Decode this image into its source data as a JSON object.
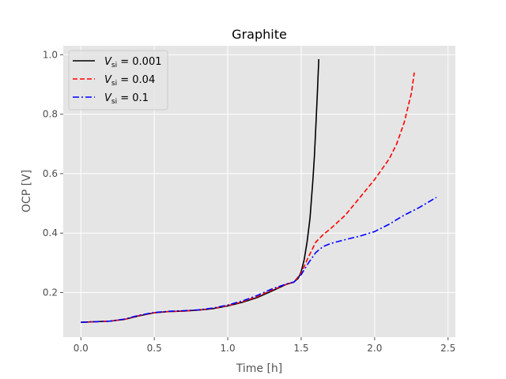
{
  "chart_data": {
    "type": "line",
    "title": "Graphite",
    "xlabel": "Time [h]",
    "ylabel": "OCP [V]",
    "xlim": [
      -0.12,
      2.55
    ],
    "ylim": [
      0.05,
      1.03
    ],
    "xticks": [
      0.0,
      0.5,
      1.0,
      1.5,
      2.0,
      2.5
    ],
    "xtick_labels": [
      "0.0",
      "0.5",
      "1.0",
      "1.5",
      "2.0",
      "2.5"
    ],
    "yticks": [
      0.2,
      0.4,
      0.6,
      0.8,
      1.0
    ],
    "ytick_labels": [
      "0.2",
      "0.4",
      "0.6",
      "0.8",
      "1.0"
    ],
    "grid": true,
    "background": "#e5e5e5",
    "grid_color": "#ffffff",
    "legend_position": "top-left",
    "series": [
      {
        "name": "V_si = 0.001",
        "legend_var": "V",
        "legend_sub": "si",
        "legend_eq": " = 0.001",
        "color": "#000000",
        "dash": "solid",
        "x": [
          0.0,
          0.1,
          0.2,
          0.3,
          0.4,
          0.5,
          0.6,
          0.7,
          0.8,
          0.9,
          1.0,
          1.1,
          1.2,
          1.3,
          1.4,
          1.45,
          1.48,
          1.5,
          1.52,
          1.54,
          1.56,
          1.58,
          1.59,
          1.6,
          1.61,
          1.62
        ],
        "y": [
          0.1,
          0.102,
          0.104,
          0.11,
          0.122,
          0.132,
          0.136,
          0.138,
          0.141,
          0.146,
          0.155,
          0.167,
          0.183,
          0.205,
          0.228,
          0.235,
          0.248,
          0.27,
          0.31,
          0.37,
          0.45,
          0.58,
          0.66,
          0.76,
          0.87,
          0.985
        ]
      },
      {
        "name": "V_si = 0.04",
        "legend_var": "V",
        "legend_sub": "si",
        "legend_eq": " = 0.04",
        "color": "#ff0000",
        "dash": "dashed",
        "x": [
          0.0,
          0.1,
          0.2,
          0.3,
          0.4,
          0.5,
          0.6,
          0.7,
          0.8,
          0.9,
          1.0,
          1.1,
          1.2,
          1.3,
          1.4,
          1.45,
          1.5,
          1.55,
          1.6,
          1.65,
          1.7,
          1.8,
          1.9,
          2.0,
          2.1,
          2.15,
          2.2,
          2.25,
          2.27
        ],
        "y": [
          0.1,
          0.102,
          0.104,
          0.11,
          0.123,
          0.132,
          0.136,
          0.138,
          0.141,
          0.147,
          0.156,
          0.169,
          0.186,
          0.208,
          0.228,
          0.235,
          0.265,
          0.32,
          0.37,
          0.395,
          0.415,
          0.46,
          0.52,
          0.58,
          0.65,
          0.7,
          0.77,
          0.87,
          0.94
        ]
      },
      {
        "name": "V_si = 0.1",
        "legend_var": "V",
        "legend_sub": "si",
        "legend_eq": " = 0.1",
        "color": "#0000ff",
        "dash": "dashdot",
        "x": [
          0.0,
          0.1,
          0.2,
          0.3,
          0.4,
          0.5,
          0.6,
          0.7,
          0.8,
          0.9,
          1.0,
          1.1,
          1.2,
          1.3,
          1.4,
          1.45,
          1.5,
          1.55,
          1.6,
          1.65,
          1.7,
          1.8,
          1.9,
          2.0,
          2.1,
          2.2,
          2.3,
          2.42
        ],
        "y": [
          0.1,
          0.102,
          0.104,
          0.111,
          0.124,
          0.133,
          0.137,
          0.139,
          0.142,
          0.148,
          0.158,
          0.172,
          0.19,
          0.212,
          0.229,
          0.235,
          0.26,
          0.3,
          0.335,
          0.355,
          0.365,
          0.378,
          0.39,
          0.405,
          0.43,
          0.46,
          0.485,
          0.52
        ]
      }
    ]
  }
}
